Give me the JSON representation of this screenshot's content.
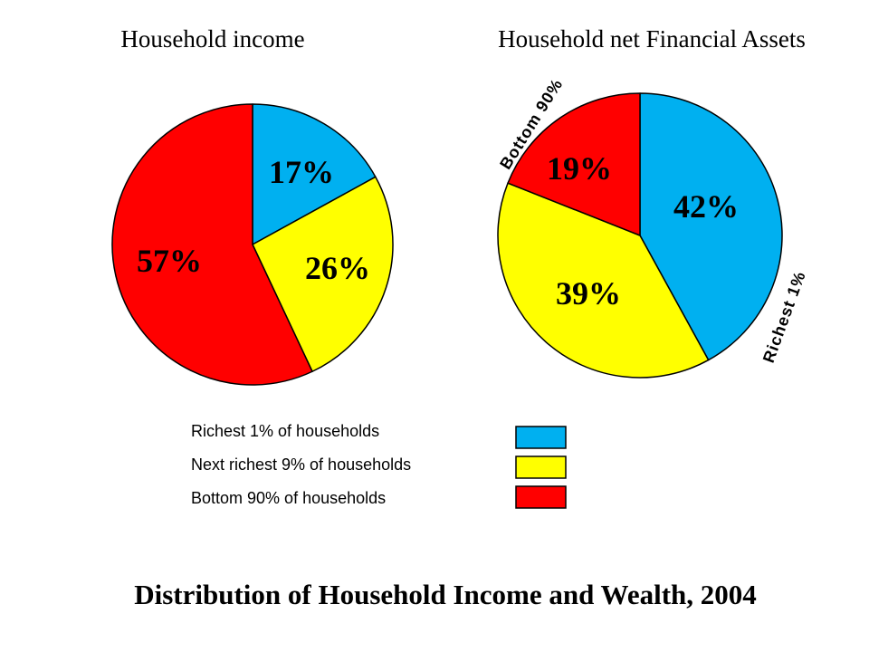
{
  "chart_data": [
    {
      "type": "pie",
      "title": "Household income",
      "categories": [
        "Richest 1% of households",
        "Next richest 9% of households",
        "Bottom 90% of households"
      ],
      "values": [
        17,
        26,
        57
      ],
      "value_labels": [
        "17%",
        "26%",
        "57%"
      ],
      "colors": [
        "#00b0f0",
        "#ffff00",
        "#ff0000"
      ]
    },
    {
      "type": "pie",
      "title": "Household net Financial Assets",
      "categories": [
        "Richest 1% of households",
        "Next richest 9% of households",
        "Bottom 90% of households"
      ],
      "values": [
        42,
        39,
        19
      ],
      "value_labels": [
        "42%",
        "39%",
        "19%"
      ],
      "colors": [
        "#00b0f0",
        "#ffff00",
        "#ff0000"
      ],
      "annotations": [
        "Richest 1%",
        "Bottom 90%"
      ]
    }
  ],
  "legend": {
    "items": [
      {
        "label": "Richest 1% of households",
        "color": "#00b0f0"
      },
      {
        "label": "Next richest 9% of households",
        "color": "#ffff00"
      },
      {
        "label": "Bottom 90% of households",
        "color": "#ff0000"
      }
    ]
  },
  "main_title": "Distribution of Household Income and Wealth, 2004"
}
